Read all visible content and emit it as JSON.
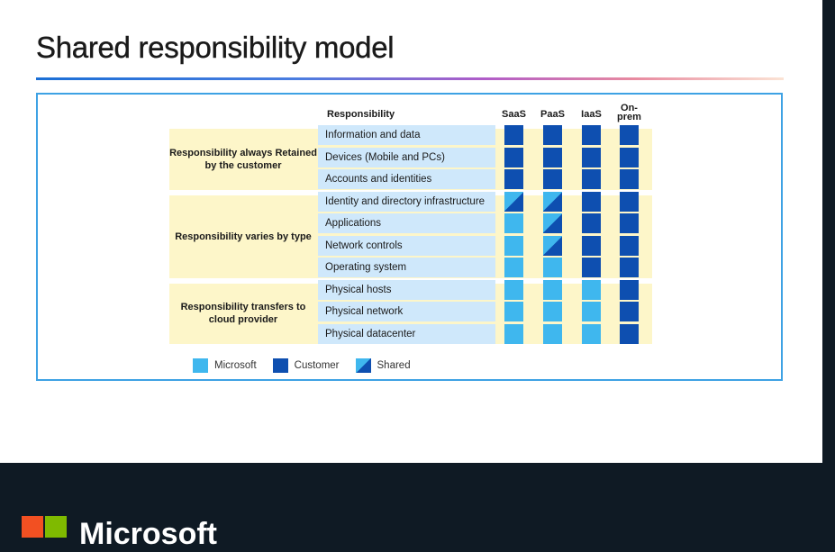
{
  "slide": {
    "title": "Shared responsibility model"
  },
  "header": {
    "responsibility": "Responsibility",
    "columns": [
      "SaaS",
      "PaaS",
      "IaaS",
      "On-\nprem"
    ]
  },
  "groups": [
    {
      "label": "Responsibility always Retained by the customer",
      "rows": [
        0,
        1,
        2
      ]
    },
    {
      "label": "Responsibility varies by type",
      "rows": [
        3,
        4,
        5,
        6
      ]
    },
    {
      "label": "Responsibility transfers to cloud provider",
      "rows": [
        7,
        8,
        9
      ]
    }
  ],
  "rows": [
    {
      "label": "Information and data",
      "cells": [
        "customer",
        "customer",
        "customer",
        "customer"
      ]
    },
    {
      "label": "Devices (Mobile and PCs)",
      "cells": [
        "customer",
        "customer",
        "customer",
        "customer"
      ]
    },
    {
      "label": "Accounts and identities",
      "cells": [
        "customer",
        "customer",
        "customer",
        "customer"
      ]
    },
    {
      "label": "Identity and directory infrastructure",
      "cells": [
        "shared",
        "shared",
        "customer",
        "customer"
      ]
    },
    {
      "label": "Applications",
      "cells": [
        "microsoft",
        "shared",
        "customer",
        "customer"
      ]
    },
    {
      "label": "Network controls",
      "cells": [
        "microsoft",
        "shared",
        "customer",
        "customer"
      ]
    },
    {
      "label": "Operating system",
      "cells": [
        "microsoft",
        "microsoft",
        "customer",
        "customer"
      ]
    },
    {
      "label": "Physical hosts",
      "cells": [
        "microsoft",
        "microsoft",
        "microsoft",
        "customer"
      ]
    },
    {
      "label": "Physical network",
      "cells": [
        "microsoft",
        "microsoft",
        "microsoft",
        "customer"
      ]
    },
    {
      "label": "Physical datacenter",
      "cells": [
        "microsoft",
        "microsoft",
        "microsoft",
        "customer"
      ]
    }
  ],
  "legend": [
    {
      "key": "microsoft",
      "label": "Microsoft"
    },
    {
      "key": "customer",
      "label": "Customer"
    },
    {
      "key": "shared",
      "label": "Shared"
    }
  ],
  "colors": {
    "microsoft": "#3fb7ee",
    "customer": "#0e4fb0",
    "group_band": "#fdf6c9",
    "row_label_bg": "#cfe8fb",
    "frame_border": "#3ea2e4"
  },
  "footer": {
    "brand": "Microsoft",
    "logo_colors": [
      "#f25022",
      "#7fba00",
      "#00a4ef",
      "#ffb900"
    ]
  }
}
